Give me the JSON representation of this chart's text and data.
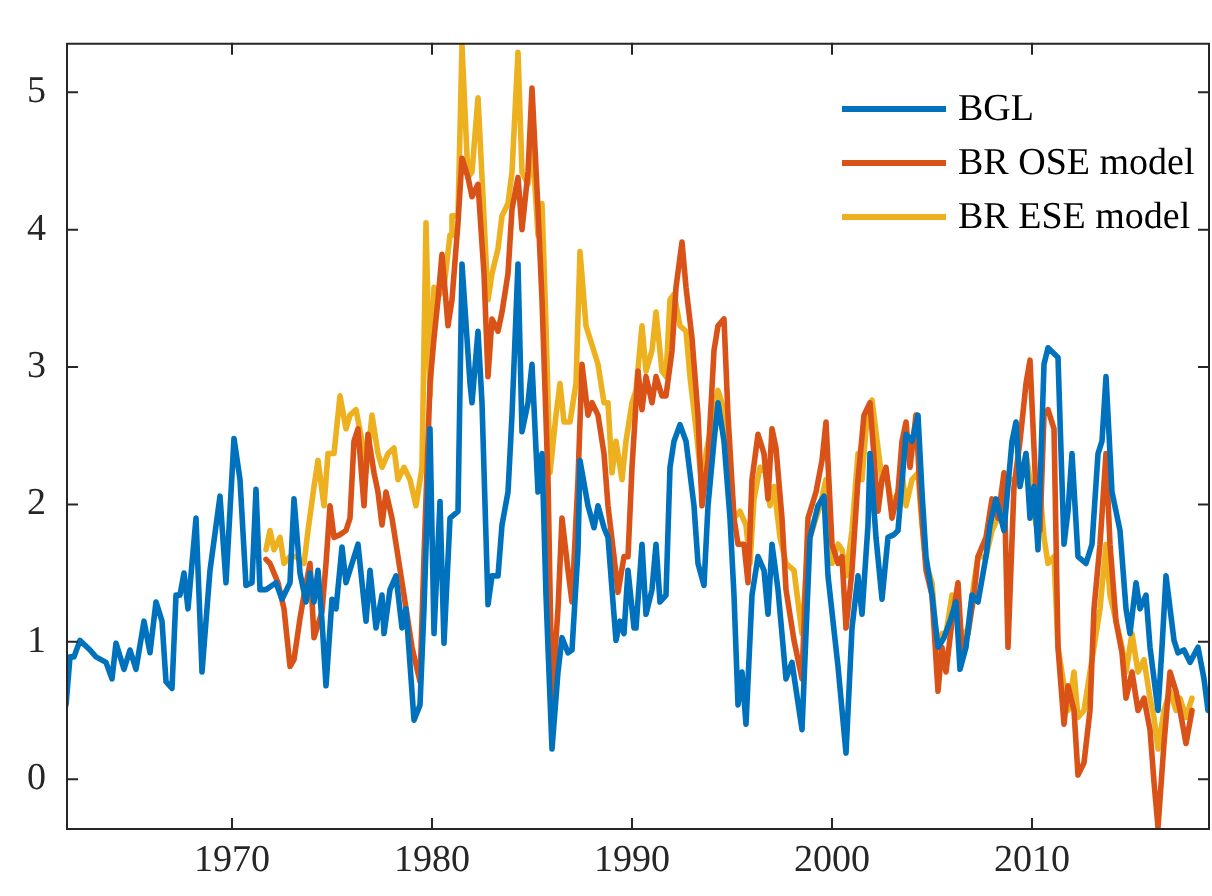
{
  "chart_data": {
    "type": "line",
    "xlim": [
      1961.7,
      2018.9
    ],
    "ylim": [
      -0.37,
      5.36
    ],
    "xticks": [
      1970,
      1980,
      1990,
      2000,
      2010
    ],
    "yticks": [
      0,
      1,
      2,
      3,
      4,
      5
    ],
    "grid": false,
    "legend": "top right",
    "marker": "none",
    "line_style": "solid",
    "series": [
      {
        "name": "BGL",
        "color": "#0072bd",
        "x": [
          1961.7,
          1961.9,
          1962.1,
          1962.4,
          1962.9,
          1963.2,
          1963.7,
          1964.0,
          1964.2,
          1964.6,
          1964.9,
          1965.2,
          1965.6,
          1965.9,
          1966.2,
          1966.5,
          1966.7,
          1967.0,
          1967.2,
          1967.4,
          1967.6,
          1967.8,
          1968.2,
          1968.5,
          1968.9,
          1969.4,
          1969.7,
          1970.1,
          1970.4,
          1970.7,
          1971.0,
          1971.2,
          1971.4,
          1971.7,
          1972.0,
          1972.2,
          1972.5,
          1972.9,
          1973.1,
          1973.4,
          1973.7,
          1973.9,
          1974.1,
          1974.3,
          1974.5,
          1974.7,
          1975.0,
          1975.2,
          1975.5,
          1975.7,
          1976.0,
          1976.3,
          1976.7,
          1976.9,
          1977.2,
          1977.5,
          1977.6,
          1977.9,
          1978.2,
          1978.5,
          1978.7,
          1979.1,
          1979.4,
          1979.6,
          1979.9,
          1980.1,
          1980.4,
          1980.6,
          1980.9,
          1981.3,
          1981.5,
          1981.9,
          1982.0,
          1982.3,
          1982.5,
          1982.8,
          1983.0,
          1983.3,
          1983.5,
          1983.8,
          1984.0,
          1984.3,
          1984.5,
          1984.8,
          1985.0,
          1985.3,
          1985.5,
          1985.7,
          1985.8,
          1986.0,
          1986.3,
          1986.5,
          1986.8,
          1987.0,
          1987.3,
          1987.4,
          1987.8,
          1988.1,
          1988.3,
          1988.6,
          1988.8,
          1989.0,
          1989.2,
          1989.4,
          1989.6,
          1989.8,
          1990.1,
          1990.2,
          1990.5,
          1990.7,
          1991.0,
          1991.2,
          1991.4,
          1991.7,
          1991.9,
          1992.1,
          1992.4,
          1992.7,
          1993.1,
          1993.3,
          1993.6,
          1993.8,
          1994.1,
          1994.3,
          1994.6,
          1994.9,
          1995.1,
          1995.3,
          1995.5,
          1995.7,
          1996.0,
          1996.3,
          1996.6,
          1996.8,
          1997.0,
          1997.3,
          1997.7,
          1998.0,
          1998.5,
          1998.9,
          1999.3,
          1999.6,
          1999.8,
          2000.3,
          2000.7,
          2001.0,
          2001.3,
          2001.5,
          2001.8,
          2001.9,
          2002.2,
          2002.5,
          2002.8,
          2003.1,
          2003.3,
          2003.7,
          2004.0,
          2004.3,
          2004.5,
          2004.7,
          2005.0,
          2005.3,
          2005.6,
          2005.9,
          2006.2,
          2006.4,
          2006.7,
          2007.0,
          2007.3,
          2007.7,
          2007.9,
          2008.2,
          2008.6,
          2009.0,
          2009.2,
          2009.4,
          2009.7,
          2009.9,
          2010.1,
          2010.3,
          2010.6,
          2010.8,
          2011.3,
          2011.6,
          2011.8,
          2012.0,
          2012.3,
          2012.7,
          2013.0,
          2013.3,
          2013.5,
          2013.7,
          2014.0,
          2014.4,
          2014.7,
          2014.9,
          2015.2,
          2015.4,
          2015.7,
          2015.9,
          2016.3,
          2016.5,
          2016.7,
          2017.1,
          2017.3,
          2017.6,
          2017.9,
          2018.3,
          2018.6,
          2018.8
        ],
        "values": [
          0.54,
          0.89,
          0.89,
          1.01,
          0.94,
          0.89,
          0.85,
          0.73,
          0.99,
          0.8,
          0.94,
          0.8,
          1.15,
          0.92,
          1.29,
          1.15,
          0.71,
          0.66,
          1.34,
          1.34,
          1.5,
          1.24,
          1.9,
          0.78,
          1.52,
          2.06,
          1.43,
          2.48,
          2.18,
          1.41,
          1.43,
          2.11,
          1.38,
          1.38,
          1.41,
          1.43,
          1.31,
          1.43,
          2.04,
          1.5,
          1.29,
          1.5,
          1.29,
          1.52,
          1.15,
          0.68,
          1.31,
          1.24,
          1.69,
          1.43,
          1.57,
          1.71,
          1.15,
          1.52,
          1.1,
          1.34,
          1.06,
          1.38,
          1.48,
          1.1,
          1.24,
          0.43,
          0.54,
          1.24,
          2.55,
          1.06,
          2.02,
          0.99,
          1.9,
          1.95,
          3.75,
          2.88,
          2.74,
          3.26,
          2.74,
          1.27,
          1.48,
          1.48,
          1.85,
          2.09,
          2.65,
          3.75,
          2.53,
          2.74,
          3.02,
          2.09,
          2.37,
          1.34,
          0.96,
          0.22,
          0.78,
          1.03,
          0.92,
          0.94,
          1.67,
          2.32,
          1.99,
          1.83,
          1.99,
          1.83,
          1.76,
          1.38,
          1.01,
          1.15,
          1.06,
          1.52,
          1.1,
          1.1,
          1.71,
          1.2,
          1.38,
          1.71,
          1.29,
          1.34,
          2.27,
          2.46,
          2.58,
          2.46,
          1.99,
          1.57,
          1.41,
          1.99,
          2.46,
          2.74,
          2.46,
          1.9,
          1.34,
          0.54,
          0.78,
          0.4,
          1.34,
          1.62,
          1.52,
          1.2,
          1.71,
          1.38,
          0.73,
          0.85,
          0.36,
          1.76,
          1.99,
          2.06,
          1.48,
          0.82,
          0.19,
          1.1,
          1.48,
          1.2,
          1.85,
          2.37,
          1.76,
          1.31,
          1.76,
          1.78,
          1.81,
          2.51,
          2.46,
          2.65,
          2.09,
          1.62,
          1.34,
          0.96,
          1.03,
          1.15,
          1.29,
          0.8,
          0.96,
          1.34,
          1.29,
          1.62,
          1.85,
          2.04,
          1.81,
          2.46,
          2.6,
          2.13,
          2.37,
          1.9,
          2.13,
          1.67,
          3.02,
          3.14,
          3.07,
          1.71,
          1.95,
          2.37,
          1.62,
          1.57,
          1.71,
          2.37,
          2.46,
          2.93,
          2.09,
          1.81,
          1.24,
          1.06,
          1.43,
          1.24,
          1.34,
          0.96,
          0.5,
          0.96,
          1.48,
          1.01,
          0.92,
          0.94,
          0.85,
          0.96,
          0.73,
          0.5
        ]
      },
      {
        "name": "BR OSE model",
        "color": "#d95319",
        "x": [
          1971.7,
          1971.9,
          1972.1,
          1972.3,
          1972.6,
          1972.9,
          1973.1,
          1973.4,
          1973.6,
          1973.9,
          1974.1,
          1974.5,
          1974.7,
          1974.9,
          1975.1,
          1975.4,
          1975.7,
          1975.9,
          1976.1,
          1976.3,
          1976.6,
          1976.8,
          1977.1,
          1977.3,
          1977.5,
          1977.7,
          1978.0,
          1978.3,
          1978.6,
          1979.0,
          1979.4,
          1979.6,
          1979.9,
          1980.1,
          1980.3,
          1980.5,
          1980.8,
          1981.0,
          1981.3,
          1981.5,
          1981.8,
          1982.0,
          1982.3,
          1982.6,
          1982.8,
          1983.0,
          1983.3,
          1983.5,
          1983.8,
          1984.0,
          1984.3,
          1984.5,
          1984.8,
          1985.0,
          1985.3,
          1985.5,
          1985.8,
          1986.0,
          1986.3,
          1986.5,
          1986.8,
          1987.0,
          1987.3,
          1987.5,
          1987.8,
          1988.0,
          1988.3,
          1988.6,
          1988.8,
          1989.1,
          1989.3,
          1989.6,
          1989.8,
          1990.0,
          1990.3,
          1990.5,
          1990.7,
          1991.0,
          1991.2,
          1991.5,
          1991.7,
          1992.0,
          1992.2,
          1992.5,
          1992.7,
          1993.0,
          1993.3,
          1993.5,
          1993.8,
          1994.1,
          1994.3,
          1994.6,
          1994.8,
          1995.1,
          1995.3,
          1995.6,
          1995.8,
          1996.0,
          1996.3,
          1996.6,
          1996.8,
          1997.0,
          1997.2,
          1997.5,
          1997.7,
          1998.1,
          1998.5,
          1998.8,
          1999.2,
          1999.5,
          1999.7,
          2000.0,
          2000.3,
          2000.5,
          2000.7,
          2001.0,
          2001.3,
          2001.6,
          2001.9,
          2002.3,
          2002.5,
          2002.7,
          2003.0,
          2003.3,
          2003.5,
          2003.7,
          2003.9,
          2004.2,
          2004.4,
          2004.7,
          2005.0,
          2005.3,
          2005.5,
          2005.7,
          2006.0,
          2006.3,
          2006.5,
          2006.8,
          2007.1,
          2007.3,
          2007.7,
          2008.0,
          2008.3,
          2008.6,
          2008.8,
          2009.1,
          2009.4,
          2009.7,
          2009.9,
          2010.2,
          2010.4,
          2010.6,
          2010.8,
          2011.1,
          2011.3,
          2011.6,
          2011.8,
          2012.1,
          2012.3,
          2012.6,
          2012.9,
          2013.1,
          2013.4,
          2013.7,
          2013.9,
          2014.2,
          2014.5,
          2014.7,
          2015.0,
          2015.3,
          2015.6,
          2015.9,
          2016.1,
          2016.3,
          2016.6,
          2016.9,
          2017.2,
          2017.4,
          2017.7,
          2018.0
        ],
        "values": [
          1.6,
          1.57,
          1.5,
          1.43,
          1.24,
          0.82,
          0.87,
          1.17,
          1.34,
          1.57,
          1.03,
          1.22,
          1.57,
          1.99,
          1.76,
          1.78,
          1.81,
          1.9,
          2.46,
          2.55,
          1.99,
          2.51,
          2.23,
          2.09,
          1.85,
          2.09,
          1.9,
          1.62,
          1.34,
          0.96,
          0.71,
          1.62,
          2.88,
          3.21,
          3.49,
          3.82,
          3.3,
          3.49,
          4.05,
          4.52,
          4.38,
          4.24,
          4.33,
          3.68,
          2.93,
          3.35,
          3.26,
          3.4,
          3.68,
          4.15,
          4.38,
          4.0,
          4.42,
          5.03,
          4.15,
          3.49,
          2.18,
          0.59,
          1.24,
          1.9,
          1.52,
          1.29,
          2.18,
          3.02,
          2.65,
          2.74,
          2.65,
          2.37,
          1.99,
          1.62,
          1.36,
          1.62,
          1.62,
          2.27,
          2.97,
          2.69,
          2.93,
          2.74,
          2.93,
          2.79,
          2.79,
          3.12,
          3.58,
          3.91,
          3.58,
          3.21,
          2.65,
          1.99,
          2.32,
          3.12,
          3.3,
          3.35,
          2.65,
          1.9,
          1.71,
          1.71,
          1.43,
          2.18,
          2.51,
          2.37,
          2.04,
          2.55,
          2.41,
          1.9,
          1.38,
          1.01,
          0.73,
          1.9,
          2.09,
          2.32,
          2.6,
          1.71,
          1.57,
          1.62,
          1.1,
          1.52,
          2.18,
          2.65,
          2.74,
          1.95,
          2.18,
          2.27,
          1.9,
          2.09,
          2.46,
          2.6,
          2.27,
          2.65,
          2.09,
          1.52,
          1.34,
          0.64,
          0.96,
          0.78,
          1.15,
          1.43,
          0.92,
          1.06,
          1.34,
          1.62,
          1.76,
          2.04,
          1.9,
          2.23,
          0.96,
          2.13,
          2.46,
          2.88,
          3.05,
          2.09,
          1.81,
          2.65,
          2.69,
          2.55,
          0.96,
          0.4,
          0.68,
          0.5,
          0.03,
          0.12,
          0.5,
          1.24,
          1.71,
          2.37,
          1.71,
          1.15,
          0.92,
          0.59,
          0.78,
          0.5,
          0.59,
          0.36,
          -0.02,
          -0.35,
          0.26,
          0.78,
          0.64,
          0.5,
          0.26,
          0.5
        ]
      },
      {
        "name": "BR ESE model",
        "color": "#edb120",
        "x": [
          1971.7,
          1971.9,
          1972.1,
          1972.4,
          1972.6,
          1972.9,
          1973.2,
          1973.6,
          1973.8,
          1974.1,
          1974.3,
          1974.6,
          1974.8,
          1975.1,
          1975.4,
          1975.7,
          1975.9,
          1976.2,
          1976.5,
          1976.7,
          1977.0,
          1977.3,
          1977.5,
          1977.8,
          1978.1,
          1978.3,
          1978.6,
          1978.9,
          1979.2,
          1979.5,
          1979.7,
          1979.9,
          1980.1,
          1980.4,
          1980.6,
          1980.9,
          1981.0,
          1981.3,
          1981.5,
          1981.8,
          1982.0,
          1982.3,
          1982.5,
          1982.8,
          1983.0,
          1983.3,
          1983.5,
          1983.8,
          1984.0,
          1984.3,
          1984.5,
          1984.8,
          1985.0,
          1985.3,
          1985.5,
          1985.7,
          1985.9,
          1986.2,
          1986.4,
          1986.6,
          1986.9,
          1987.2,
          1987.4,
          1987.7,
          1988.0,
          1988.3,
          1988.6,
          1988.8,
          1989.0,
          1989.2,
          1989.5,
          1989.7,
          1990.0,
          1990.2,
          1990.5,
          1990.7,
          1991.0,
          1991.2,
          1991.5,
          1991.7,
          1991.9,
          1992.1,
          1992.4,
          1992.7,
          1992.9,
          1993.2,
          1993.5,
          1993.7,
          1994.0,
          1994.3,
          1994.6,
          1994.9,
          1995.1,
          1995.4,
          1995.7,
          1995.9,
          1996.1,
          1996.4,
          1996.7,
          1996.9,
          1997.1,
          1997.4,
          1997.7,
          1998.1,
          1998.5,
          1998.8,
          1999.2,
          1999.4,
          1999.7,
          2000.0,
          2000.3,
          2000.5,
          2000.7,
          2001.0,
          2001.3,
          2001.5,
          2001.7,
          2002.0,
          2002.3,
          2002.5,
          2002.7,
          2003.0,
          2003.3,
          2003.5,
          2003.7,
          2004.0,
          2004.3,
          2004.5,
          2004.7,
          2005.0,
          2005.3,
          2005.5,
          2005.7,
          2006.0,
          2006.3,
          2006.5,
          2006.8,
          2007.1,
          2007.3,
          2007.7,
          2008.0,
          2008.3,
          2008.6,
          2008.8,
          2009.1,
          2009.4,
          2009.7,
          2009.9,
          2010.2,
          2010.4,
          2010.6,
          2010.8,
          2011.1,
          2011.3,
          2011.6,
          2011.8,
          2012.1,
          2012.3,
          2012.6,
          2012.9,
          2013.1,
          2013.4,
          2013.7,
          2013.9,
          2014.2,
          2014.5,
          2014.7,
          2015.0,
          2015.3,
          2015.6,
          2015.9,
          2016.1,
          2016.3,
          2016.6,
          2016.9,
          2017.2,
          2017.4,
          2017.7,
          2018.0
        ],
        "values": [
          1.67,
          1.81,
          1.67,
          1.76,
          1.57,
          1.62,
          1.62,
          1.57,
          1.81,
          2.13,
          2.32,
          1.99,
          2.37,
          2.37,
          2.79,
          2.55,
          2.65,
          2.69,
          2.46,
          2.23,
          2.65,
          2.37,
          2.27,
          2.37,
          2.41,
          2.18,
          2.27,
          2.18,
          1.99,
          2.27,
          4.05,
          2.79,
          3.58,
          3.53,
          3.58,
          3.96,
          4.1,
          4.1,
          5.34,
          4.38,
          4.42,
          4.96,
          4.38,
          3.49,
          3.68,
          3.86,
          4.1,
          4.19,
          4.42,
          5.29,
          4.42,
          4.33,
          4.66,
          3.96,
          4.19,
          3.3,
          2.23,
          2.65,
          2.88,
          2.6,
          2.6,
          2.88,
          3.84,
          3.3,
          3.16,
          3.02,
          2.74,
          2.74,
          2.23,
          2.46,
          2.18,
          2.46,
          2.74,
          2.83,
          3.3,
          2.97,
          3.12,
          3.4,
          2.97,
          2.93,
          3.49,
          3.53,
          3.3,
          3.26,
          2.93,
          2.55,
          2.13,
          2.37,
          2.6,
          2.83,
          2.69,
          2.27,
          1.9,
          1.95,
          1.85,
          1.57,
          2.04,
          2.27,
          2.23,
          1.99,
          2.13,
          1.76,
          1.57,
          1.52,
          1.06,
          1.71,
          1.9,
          1.99,
          2.18,
          1.57,
          1.71,
          1.67,
          1.48,
          1.81,
          2.37,
          2.18,
          2.55,
          2.76,
          2.41,
          2.18,
          2.23,
          1.99,
          2.09,
          2.23,
          1.99,
          2.18,
          2.23,
          1.85,
          1.57,
          1.43,
          0.87,
          1.06,
          1.06,
          1.34,
          1.24,
          1.01,
          1.1,
          1.43,
          1.62,
          1.62,
          1.81,
          1.9,
          2.09,
          2.18,
          2.18,
          2.18,
          2.37,
          2.18,
          1.85,
          2.09,
          1.76,
          1.57,
          1.62,
          0.96,
          0.68,
          0.5,
          0.78,
          0.45,
          0.5,
          0.78,
          0.96,
          1.24,
          1.71,
          1.34,
          1.15,
          0.96,
          0.78,
          1.06,
          0.78,
          0.87,
          0.59,
          0.45,
          0.22,
          0.5,
          0.64,
          0.5,
          0.59,
          0.45,
          0.59
        ]
      }
    ]
  }
}
